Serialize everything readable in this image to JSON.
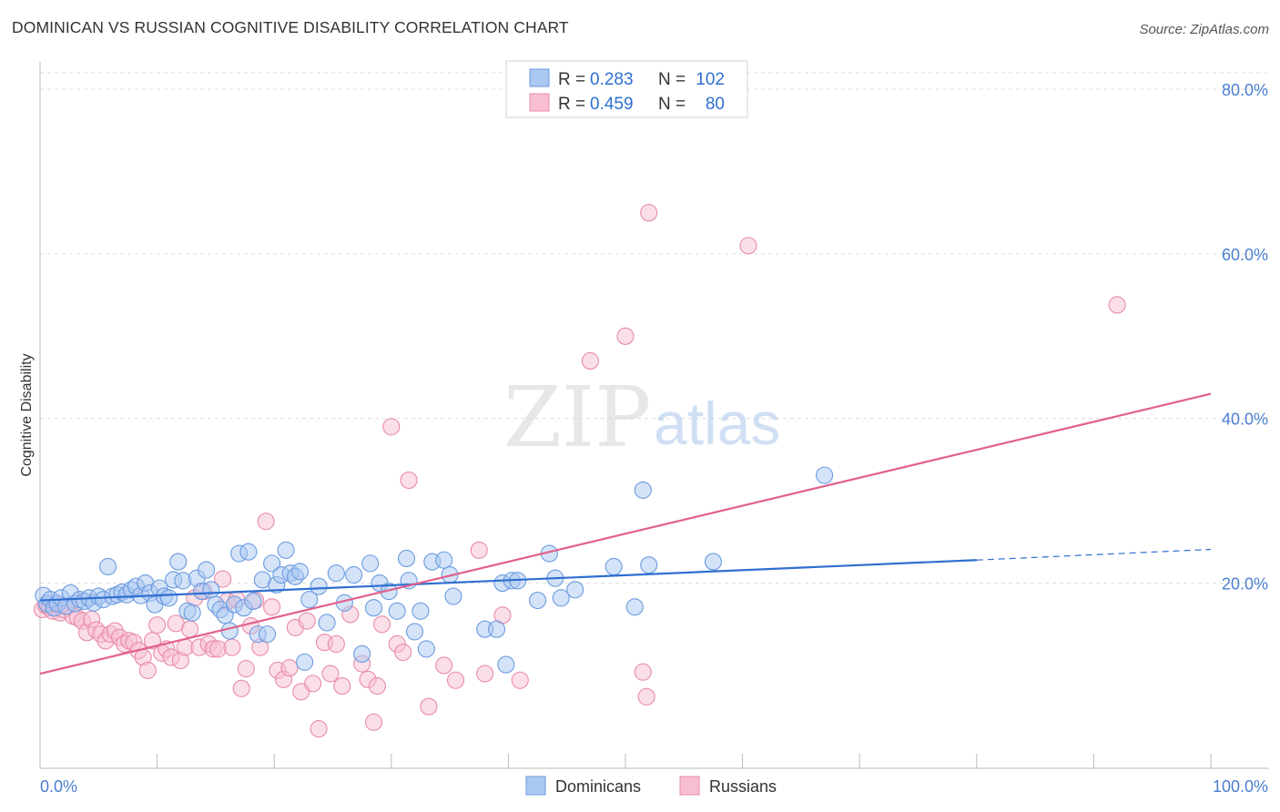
{
  "title": "DOMINICAN VS RUSSIAN COGNITIVE DISABILITY CORRELATION CHART",
  "source": "Source: ZipAtlas.com",
  "watermark": {
    "zip": "ZIP",
    "atlas": "atlas"
  },
  "legend": {
    "rows": [
      {
        "r_label": "R =",
        "r_value": "0.283",
        "n_label": "N =",
        "n_value": "102",
        "color": "#aac8f2",
        "stroke": "#6b9be0"
      },
      {
        "r_label": "R =",
        "r_value": "0.459",
        "n_label": "N =",
        "n_value": "80",
        "color": "#f8bfd1",
        "stroke": "#e88aa8"
      }
    ]
  },
  "bottom_legend": [
    "Dominicans",
    "Russians"
  ],
  "chart_data": {
    "type": "scatter",
    "title": "DOMINICAN VS RUSSIAN COGNITIVE DISABILITY CORRELATION CHART",
    "xlabel": "",
    "ylabel": "Cognitive Disability",
    "xlim": [
      0,
      100
    ],
    "ylim": [
      -2.5,
      82
    ],
    "x_tick_labels": [
      "0.0%",
      "100.0%"
    ],
    "y_ticks": [
      20,
      40,
      60,
      80
    ],
    "y_tick_labels": [
      "20.0%",
      "40.0%",
      "60.0%",
      "80.0%"
    ],
    "grid": true,
    "legend_position": "top-center",
    "series": [
      {
        "name": "Dominicans",
        "color": "#6b9be0",
        "fill": "#aac8f2",
        "trend": {
          "x0": 0,
          "y0": 17.9,
          "x1": 80,
          "y1": 22.8,
          "dashed_to": 100,
          "dashed_y": 24.1,
          "color": "#2f6fd0"
        },
        "points": [
          [
            0.3,
            18.5
          ],
          [
            0.6,
            17.5
          ],
          [
            0.9,
            18.0
          ],
          [
            1.2,
            17.0
          ],
          [
            1.5,
            17.5
          ],
          [
            1.8,
            18.2
          ],
          [
            2.2,
            17.2
          ],
          [
            2.6,
            18.8
          ],
          [
            3.0,
            17.5
          ],
          [
            3.4,
            18.0
          ],
          [
            3.8,
            17.8
          ],
          [
            4.2,
            18.2
          ],
          [
            4.6,
            17.6
          ],
          [
            5.0,
            18.4
          ],
          [
            5.4,
            18.0
          ],
          [
            5.8,
            22.0
          ],
          [
            6.2,
            18.4
          ],
          [
            6.6,
            18.6
          ],
          [
            7.0,
            18.9
          ],
          [
            7.4,
            18.6
          ],
          [
            7.8,
            19.2
          ],
          [
            8.2,
            19.6
          ],
          [
            8.6,
            18.5
          ],
          [
            9.0,
            20.0
          ],
          [
            9.4,
            18.8
          ],
          [
            9.8,
            17.4
          ],
          [
            10.2,
            19.4
          ],
          [
            10.6,
            18.4
          ],
          [
            11.0,
            18.2
          ],
          [
            11.4,
            20.4
          ],
          [
            11.8,
            22.6
          ],
          [
            12.2,
            20.3
          ],
          [
            12.6,
            16.6
          ],
          [
            13.0,
            16.4
          ],
          [
            13.4,
            20.6
          ],
          [
            13.8,
            19.0
          ],
          [
            14.2,
            21.6
          ],
          [
            14.6,
            19.2
          ],
          [
            15.0,
            17.4
          ],
          [
            15.4,
            16.8
          ],
          [
            15.8,
            16.1
          ],
          [
            16.2,
            14.2
          ],
          [
            16.6,
            17.4
          ],
          [
            17.0,
            23.6
          ],
          [
            17.4,
            17.0
          ],
          [
            17.8,
            23.8
          ],
          [
            18.2,
            17.8
          ],
          [
            18.6,
            13.8
          ],
          [
            19.0,
            20.4
          ],
          [
            19.4,
            13.8
          ],
          [
            19.8,
            22.4
          ],
          [
            20.2,
            19.8
          ],
          [
            20.6,
            21.0
          ],
          [
            21.0,
            24.0
          ],
          [
            21.4,
            21.2
          ],
          [
            21.8,
            20.8
          ],
          [
            22.2,
            21.4
          ],
          [
            22.6,
            10.4
          ],
          [
            23.0,
            18.0
          ],
          [
            23.8,
            19.6
          ],
          [
            24.5,
            15.2
          ],
          [
            25.3,
            21.2
          ],
          [
            26.0,
            17.6
          ],
          [
            26.8,
            21.0
          ],
          [
            27.5,
            11.4
          ],
          [
            28.2,
            22.4
          ],
          [
            28.5,
            17.0
          ],
          [
            29.0,
            20.0
          ],
          [
            29.8,
            19.0
          ],
          [
            30.5,
            16.6
          ],
          [
            31.3,
            23.0
          ],
          [
            31.5,
            20.3
          ],
          [
            32.0,
            14.1
          ],
          [
            32.5,
            16.6
          ],
          [
            33.0,
            12.0
          ],
          [
            33.5,
            22.6
          ],
          [
            34.5,
            22.8
          ],
          [
            35.0,
            21.0
          ],
          [
            35.3,
            18.4
          ],
          [
            38.0,
            14.4
          ],
          [
            39.0,
            14.4
          ],
          [
            39.5,
            20.0
          ],
          [
            39.8,
            10.1
          ],
          [
            40.3,
            20.3
          ],
          [
            40.8,
            20.3
          ],
          [
            42.5,
            17.9
          ],
          [
            43.5,
            23.6
          ],
          [
            44.0,
            20.6
          ],
          [
            44.5,
            18.2
          ],
          [
            45.7,
            19.2
          ],
          [
            49.0,
            22.0
          ],
          [
            50.8,
            17.1
          ],
          [
            51.5,
            31.3
          ],
          [
            52.0,
            22.2
          ],
          [
            57.5,
            22.6
          ],
          [
            67.0,
            33.1
          ]
        ]
      },
      {
        "name": "Russians",
        "color": "#e88aa8",
        "fill": "#f8bfd1",
        "trend": {
          "x0": 0,
          "y0": 9.0,
          "x1": 100,
          "y1": 43.0,
          "color": "#e0618c"
        },
        "points": [
          [
            0.2,
            16.8
          ],
          [
            0.5,
            17.3
          ],
          [
            0.8,
            17.0
          ],
          [
            1.1,
            16.6
          ],
          [
            1.4,
            17.5
          ],
          [
            1.7,
            16.4
          ],
          [
            2.0,
            16.8
          ],
          [
            2.4,
            17.2
          ],
          [
            2.8,
            16.0
          ],
          [
            3.2,
            15.8
          ],
          [
            3.6,
            15.4
          ],
          [
            4.0,
            14.0
          ],
          [
            4.4,
            15.6
          ],
          [
            4.8,
            14.3
          ],
          [
            5.2,
            13.8
          ],
          [
            5.6,
            13.0
          ],
          [
            6.0,
            13.8
          ],
          [
            6.4,
            14.2
          ],
          [
            6.8,
            13.4
          ],
          [
            7.2,
            12.6
          ],
          [
            7.6,
            13.0
          ],
          [
            8.0,
            12.8
          ],
          [
            8.4,
            11.8
          ],
          [
            8.8,
            11.0
          ],
          [
            9.2,
            9.4
          ],
          [
            9.6,
            13.0
          ],
          [
            10.0,
            14.9
          ],
          [
            10.4,
            11.5
          ],
          [
            10.8,
            12.0
          ],
          [
            11.2,
            11.0
          ],
          [
            11.6,
            15.1
          ],
          [
            12.0,
            10.6
          ],
          [
            12.4,
            12.2
          ],
          [
            12.8,
            14.4
          ],
          [
            13.2,
            18.2
          ],
          [
            13.6,
            12.2
          ],
          [
            14.0,
            19.0
          ],
          [
            14.4,
            12.6
          ],
          [
            14.8,
            12.0
          ],
          [
            15.2,
            12.0
          ],
          [
            15.6,
            20.5
          ],
          [
            16.0,
            17.8
          ],
          [
            16.4,
            12.2
          ],
          [
            16.8,
            18.0
          ],
          [
            17.2,
            7.2
          ],
          [
            17.6,
            9.6
          ],
          [
            18.0,
            14.8
          ],
          [
            18.4,
            17.9
          ],
          [
            18.8,
            12.2
          ],
          [
            19.3,
            27.5
          ],
          [
            19.8,
            17.1
          ],
          [
            20.3,
            9.4
          ],
          [
            20.8,
            8.3
          ],
          [
            21.3,
            9.7
          ],
          [
            21.8,
            14.6
          ],
          [
            22.3,
            6.8
          ],
          [
            22.8,
            15.4
          ],
          [
            23.3,
            7.8
          ],
          [
            23.8,
            2.3
          ],
          [
            24.3,
            12.8
          ],
          [
            24.8,
            9.0
          ],
          [
            25.3,
            12.6
          ],
          [
            25.8,
            7.5
          ],
          [
            26.5,
            16.2
          ],
          [
            27.5,
            10.2
          ],
          [
            28.0,
            8.3
          ],
          [
            28.5,
            3.1
          ],
          [
            28.8,
            7.5
          ],
          [
            29.2,
            15.0
          ],
          [
            30.0,
            39.0
          ],
          [
            30.5,
            12.6
          ],
          [
            31.0,
            11.6
          ],
          [
            31.5,
            32.5
          ],
          [
            33.2,
            5.0
          ],
          [
            34.5,
            10.0
          ],
          [
            35.5,
            8.2
          ],
          [
            37.5,
            24.0
          ],
          [
            38.0,
            9.0
          ],
          [
            39.5,
            16.1
          ],
          [
            41.0,
            8.2
          ],
          [
            47.0,
            47.0
          ],
          [
            50.0,
            50.0
          ],
          [
            51.5,
            9.2
          ],
          [
            51.8,
            6.2
          ],
          [
            52.0,
            65.0
          ],
          [
            60.5,
            61.0
          ],
          [
            92.0,
            53.8
          ]
        ]
      }
    ]
  }
}
